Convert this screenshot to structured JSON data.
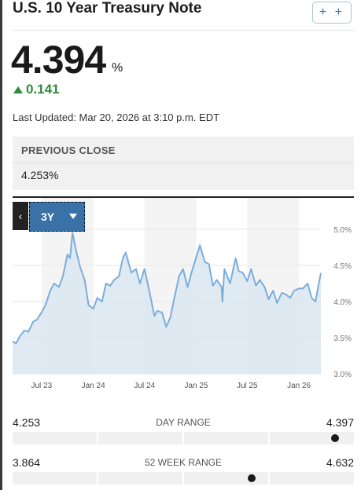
{
  "header": {
    "title": "U.S. 10 Year Treasury Note",
    "add_label": "+ +"
  },
  "quote": {
    "price": "4.394",
    "unit": "%",
    "change": "0.141",
    "last_updated": "Last Updated: Mar 20, 2026 at 3:10 p.m. EDT",
    "previous_close_label": "PREVIOUS CLOSE",
    "previous_close_value": "4.253%"
  },
  "chart_controls": {
    "prev_label": "‹",
    "range_label": "3Y"
  },
  "colors": {
    "line": "#7aaedb",
    "area": "#dae6f1",
    "change_up": "#2f8a3e",
    "selector": "#3a72a7"
  },
  "chart_data": {
    "type": "area",
    "title": "",
    "xlabel": "",
    "ylabel": "",
    "ylim": [
      3.0,
      5.0
    ],
    "y_ticks": [
      "5.0%",
      "4.5%",
      "4.0%",
      "3.5%",
      "3.0%"
    ],
    "y_tick_values": [
      5.0,
      4.5,
      4.0,
      3.5,
      3.0
    ],
    "x_ticks": [
      "Jul 23",
      "Jan 24",
      "Jul 24",
      "Jan 25",
      "Jul 25",
      "Jan 26"
    ],
    "x_tick_values": [
      "2023-07-01",
      "2024-01-01",
      "2024-07-01",
      "2025-01-01",
      "2025-07-01",
      "2026-01-01"
    ],
    "x_range": [
      "2023-03-20",
      "2026-03-20"
    ],
    "grid": true,
    "series": [
      {
        "x": [
          "2023-03-20",
          "2023-04-01",
          "2023-04-15",
          "2023-05-01",
          "2023-05-15",
          "2023-06-01",
          "2023-06-15",
          "2023-07-01",
          "2023-07-15",
          "2023-08-01",
          "2023-08-15",
          "2023-09-01",
          "2023-09-15",
          "2023-10-01",
          "2023-10-10",
          "2023-10-19",
          "2023-11-01",
          "2023-11-15",
          "2023-12-01",
          "2023-12-15",
          "2024-01-01",
          "2024-01-15",
          "2024-02-01",
          "2024-02-15",
          "2024-03-01",
          "2024-03-15",
          "2024-04-01",
          "2024-04-15",
          "2024-04-25",
          "2024-05-15",
          "2024-06-01",
          "2024-06-15",
          "2024-07-01",
          "2024-07-15",
          "2024-08-05",
          "2024-08-15",
          "2024-09-01",
          "2024-09-16",
          "2024-10-01",
          "2024-10-15",
          "2024-11-01",
          "2024-11-15",
          "2024-12-01",
          "2024-12-15",
          "2025-01-14",
          "2025-01-31",
          "2025-02-15",
          "2025-03-01",
          "2025-03-15",
          "2025-04-01",
          "2025-04-04",
          "2025-04-11",
          "2025-05-01",
          "2025-05-21",
          "2025-06-01",
          "2025-06-15",
          "2025-07-01",
          "2025-07-15",
          "2025-08-01",
          "2025-08-15",
          "2025-09-01",
          "2025-09-15",
          "2025-10-01",
          "2025-10-15",
          "2025-11-01",
          "2025-11-15",
          "2025-12-01",
          "2025-12-15",
          "2026-01-01",
          "2026-01-15",
          "2026-02-01",
          "2026-02-15",
          "2026-03-01",
          "2026-03-10",
          "2026-03-20"
        ],
        "values": [
          3.45,
          3.42,
          3.52,
          3.6,
          3.58,
          3.72,
          3.75,
          3.85,
          3.95,
          4.15,
          4.25,
          4.2,
          4.35,
          4.65,
          4.6,
          4.95,
          4.7,
          4.48,
          4.3,
          3.95,
          3.9,
          4.05,
          4.0,
          4.25,
          4.22,
          4.3,
          4.35,
          4.6,
          4.68,
          4.4,
          4.45,
          4.25,
          4.45,
          4.2,
          3.8,
          3.87,
          3.85,
          3.65,
          3.78,
          4.05,
          4.35,
          4.45,
          4.2,
          4.4,
          4.78,
          4.55,
          4.52,
          4.22,
          4.3,
          4.2,
          4.0,
          4.45,
          4.25,
          4.6,
          4.42,
          4.4,
          4.28,
          4.45,
          4.22,
          4.3,
          4.2,
          4.03,
          4.15,
          3.98,
          4.12,
          4.1,
          4.05,
          4.15,
          4.18,
          4.18,
          4.25,
          4.05,
          4.0,
          4.2,
          4.394
        ]
      }
    ]
  },
  "day_range": {
    "label": "DAY RANGE",
    "low": "4.253",
    "high": "4.397",
    "position": 0.99
  },
  "week52_range": {
    "label": "52 WEEK RANGE",
    "low": "3.864",
    "high": "4.632",
    "position": 0.7
  }
}
